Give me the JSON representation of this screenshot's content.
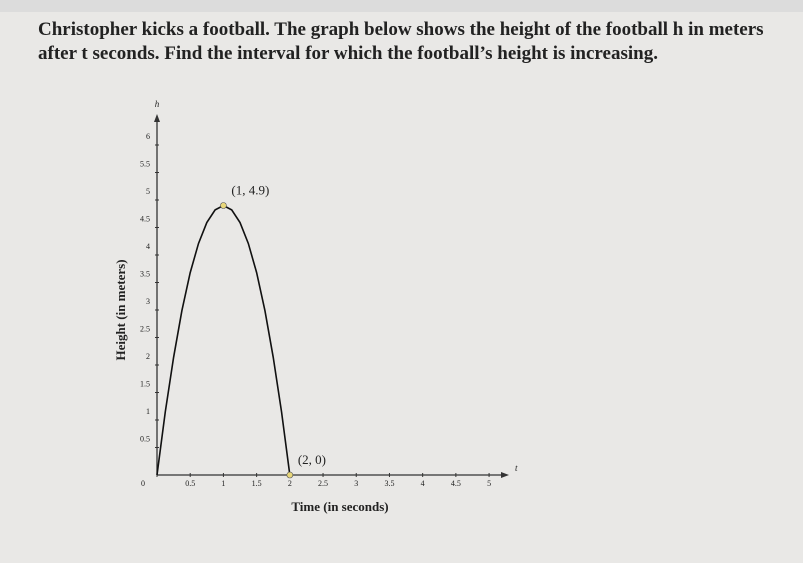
{
  "question": "Christopher kicks a football. The graph below shows the height of the football h in meters after t seconds. Find the interval for which the football’s height is increasing.",
  "chart_data": {
    "type": "line",
    "x_label": "Time (in seconds)",
    "y_label": "Height (in meters)",
    "x_axis_name": "t",
    "y_axis_name": "h",
    "x": [
      0,
      0.125,
      0.25,
      0.375,
      0.5,
      0.625,
      0.75,
      0.875,
      1,
      1.125,
      1.25,
      1.375,
      1.5,
      1.625,
      1.75,
      1.875,
      2
    ],
    "series": [
      {
        "name": "h",
        "color": "#111111",
        "values": [
          0,
          1.15,
          2.14,
          2.99,
          3.68,
          4.21,
          4.59,
          4.82,
          4.9,
          4.82,
          4.59,
          4.21,
          3.68,
          2.99,
          2.14,
          1.15,
          0
        ]
      }
    ],
    "annotations": [
      {
        "text": "(1, 4.9)",
        "x": 1,
        "y": 4.9
      },
      {
        "text": "(2, 0)",
        "x": 2,
        "y": 0
      }
    ],
    "marker_color": "#e8d77a",
    "xlim": [
      0,
      5.3
    ],
    "ylim": [
      0,
      6.4
    ],
    "xticks": [
      0,
      0.5,
      1,
      1.5,
      2,
      2.5,
      3,
      3.5,
      4,
      4.5,
      5
    ],
    "yticks": [
      0.5,
      1,
      1.5,
      2,
      2.5,
      3,
      3.5,
      4,
      4.5,
      5,
      5.5,
      6
    ]
  }
}
